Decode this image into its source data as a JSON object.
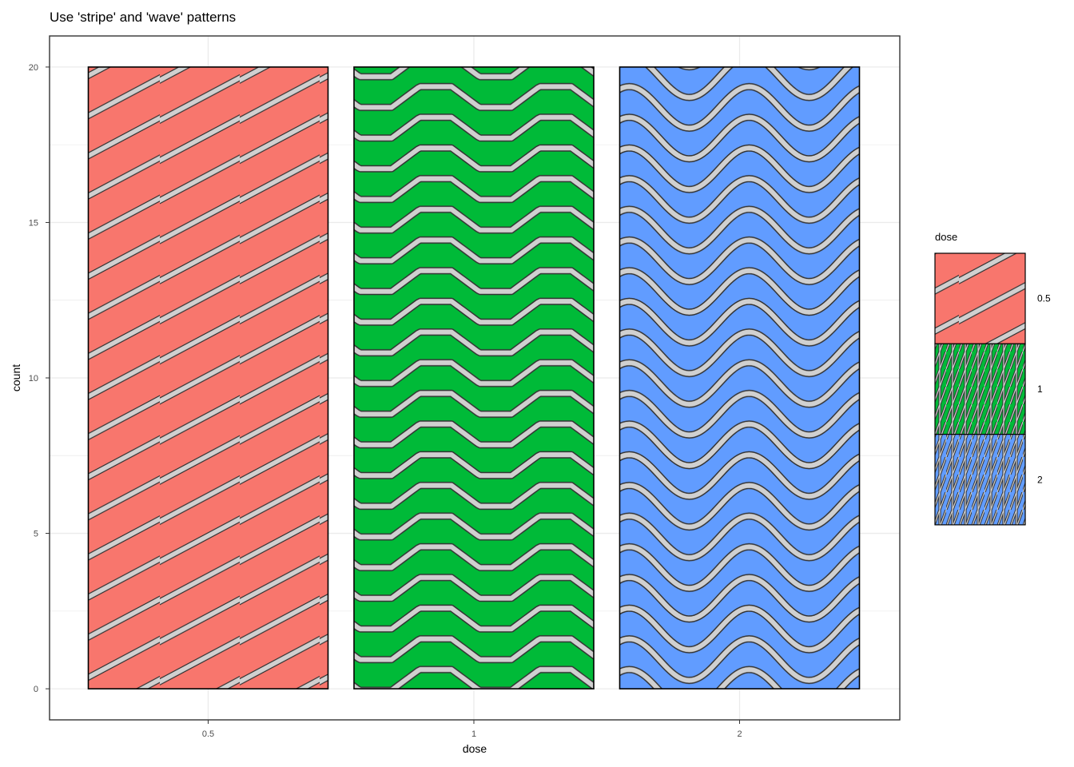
{
  "chart_data": {
    "type": "bar",
    "title": "Use 'stripe' and 'wave' patterns",
    "xlabel": "dose",
    "ylabel": "count",
    "categories": [
      "0.5",
      "1",
      "2"
    ],
    "values": [
      20,
      20,
      20
    ],
    "patterns": [
      "stripe",
      "wave-triangle",
      "wave-sine"
    ],
    "ylim": [
      -1,
      21
    ],
    "yticks": [
      0,
      5,
      10,
      15,
      20
    ],
    "grid": true,
    "colors": {
      "0.5": "#F8766D",
      "1": "#00BA38",
      "2": "#619CFF",
      "pattern_fill": "#d0d0d0",
      "pattern_outline": "#333333",
      "grid": "#ebebeb",
      "panel_border": "#333333"
    },
    "legend": {
      "title": "dose",
      "placement": "right",
      "entries": [
        "0.5",
        "1",
        "2"
      ]
    }
  }
}
